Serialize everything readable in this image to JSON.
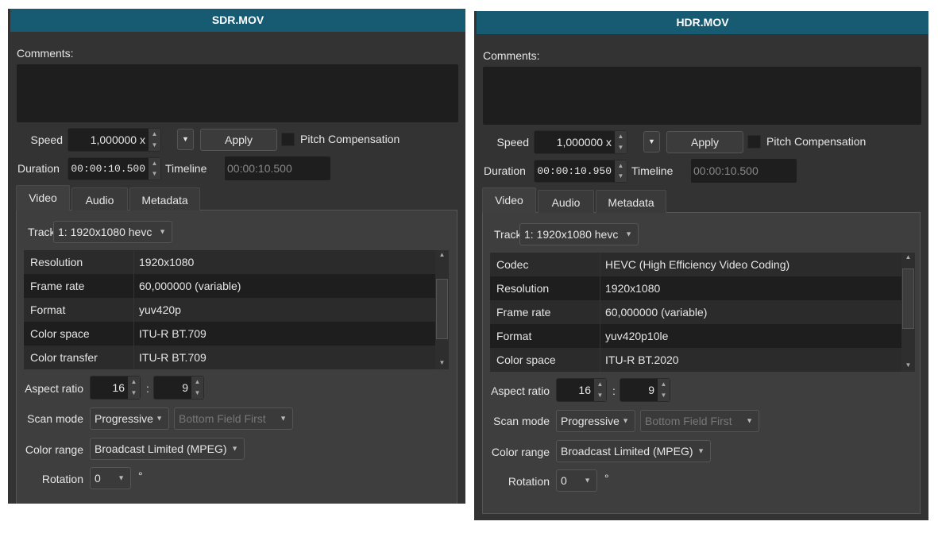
{
  "colors": {
    "header": "#175b73",
    "background": "#333333",
    "field": "#1e1e1e"
  },
  "panels": [
    {
      "title": "SDR.MOV",
      "comments_label": "Comments:",
      "speed_label": "Speed",
      "speed_value": "1,000000 x",
      "apply_label": "Apply",
      "pitch_label": "Pitch Compensation",
      "pitch_checked": false,
      "duration_label": "Duration",
      "duration_value": "00:00:10.500",
      "timeline_label": "Timeline",
      "timeline_value": "00:00:10.500",
      "tabs": [
        {
          "label": "Video",
          "active": true
        },
        {
          "label": "Audio"
        },
        {
          "label": "Metadata"
        }
      ],
      "track_label": "Track",
      "track_value": "1: 1920x1080 hevc",
      "table": [
        [
          "Resolution",
          "1920x1080"
        ],
        [
          "Frame rate",
          "60,000000 (variable)"
        ],
        [
          "Format",
          "yuv420p"
        ],
        [
          "Color space",
          "ITU-R BT.709"
        ],
        [
          "Color transfer",
          "ITU-R BT.709"
        ]
      ],
      "aspect_label": "Aspect ratio",
      "aspect_w": "16",
      "aspect_sep": ":",
      "aspect_h": "9",
      "scan_label": "Scan mode",
      "scan_value": "Progressive",
      "field_order": "Bottom Field First",
      "range_label": "Color range",
      "range_value": "Broadcast Limited (MPEG)",
      "rotation_label": "Rotation",
      "rotation_value": "0",
      "degree": "°"
    },
    {
      "title": "HDR.MOV",
      "comments_label": "Comments:",
      "speed_label": "Speed",
      "speed_value": "1,000000 x",
      "apply_label": "Apply",
      "pitch_label": "Pitch Compensation",
      "pitch_checked": false,
      "duration_label": "Duration",
      "duration_value": "00:00:10.950",
      "timeline_label": "Timeline",
      "timeline_value": "00:00:10.500",
      "tabs": [
        {
          "label": "Video",
          "active": true
        },
        {
          "label": "Audio"
        },
        {
          "label": "Metadata"
        }
      ],
      "track_label": "Track",
      "track_value": "1: 1920x1080 hevc",
      "table": [
        [
          "Codec",
          "HEVC (High Efficiency Video Coding)"
        ],
        [
          "Resolution",
          "1920x1080"
        ],
        [
          "Frame rate",
          "60,000000 (variable)"
        ],
        [
          "Format",
          "yuv420p10le"
        ],
        [
          "Color space",
          "ITU-R BT.2020"
        ]
      ],
      "aspect_label": "Aspect ratio",
      "aspect_w": "16",
      "aspect_sep": ":",
      "aspect_h": "9",
      "scan_label": "Scan mode",
      "scan_value": "Progressive",
      "field_order": "Bottom Field First",
      "range_label": "Color range",
      "range_value": "Broadcast Limited (MPEG)",
      "rotation_label": "Rotation",
      "rotation_value": "0",
      "degree": "°"
    }
  ]
}
